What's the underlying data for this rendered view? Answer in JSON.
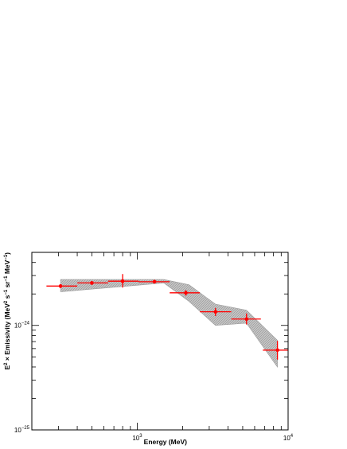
{
  "chart_data": {
    "type": "scatter",
    "title": "",
    "xlabel": "Energy (MeV)",
    "ylabel": "E² × Emissivity (MeV² s⁻¹ sr⁻¹ MeV⁻¹)",
    "xscale": "log",
    "yscale": "log",
    "xlim": [
      200,
      10000
    ],
    "ylim": [
      1e-25,
      5e-24
    ],
    "grid": false,
    "legend": "none",
    "x_ticks": [
      {
        "value": 1000,
        "label": "10",
        "exp": "3"
      },
      {
        "value": 10000,
        "label": "10",
        "exp": "4"
      }
    ],
    "y_ticks": [
      {
        "value": 1e-25,
        "label": "10",
        "exp": "−25"
      },
      {
        "value": 1e-24,
        "label": "10",
        "exp": "−24"
      }
    ],
    "points_color": "#ff0000",
    "band_color": "#b4b4b4",
    "points": [
      {
        "x": 310,
        "x_low": 250,
        "x_high": 400,
        "y": 2.38e-24,
        "y_low": 2.28e-24,
        "y_high": 2.48e-24
      },
      {
        "x": 500,
        "x_low": 400,
        "x_high": 640,
        "y": 2.55e-24,
        "y_low": 2.44e-24,
        "y_high": 2.66e-24
      },
      {
        "x": 800,
        "x_low": 640,
        "x_high": 1020,
        "y": 2.65e-24,
        "y_low": 2.3e-24,
        "y_high": 3.1e-24
      },
      {
        "x": 1300,
        "x_low": 1020,
        "x_high": 1640,
        "y": 2.62e-24,
        "y_low": 2.52e-24,
        "y_high": 2.72e-24
      },
      {
        "x": 2100,
        "x_low": 1640,
        "x_high": 2600,
        "y": 2.05e-24,
        "y_low": 1.93e-24,
        "y_high": 2.17e-24
      },
      {
        "x": 3300,
        "x_low": 2600,
        "x_high": 4200,
        "y": 1.35e-24,
        "y_low": 1.23e-24,
        "y_high": 1.47e-24
      },
      {
        "x": 5300,
        "x_low": 4200,
        "x_high": 6600,
        "y": 1.15e-24,
        "y_low": 1.02e-24,
        "y_high": 1.3e-24
      },
      {
        "x": 8500,
        "x_low": 6800,
        "x_high": 10000,
        "y": 5.8e-25,
        "y_low": 4.7e-25,
        "y_high": 7.1e-25
      }
    ],
    "band": {
      "upper": [
        [
          310,
          2.75e-24
        ],
        [
          1500,
          2.75e-24
        ],
        [
          2200,
          2.45e-24
        ],
        [
          3300,
          1.6e-24
        ],
        [
          5300,
          1.4e-24
        ],
        [
          8500,
          7.2e-25
        ]
      ],
      "lower": [
        [
          310,
          2.1e-24
        ],
        [
          1500,
          2.55e-24
        ],
        [
          2200,
          1.7e-24
        ],
        [
          3300,
          1e-24
        ],
        [
          5300,
          1.05e-24
        ],
        [
          8500,
          4e-25
        ]
      ]
    }
  }
}
